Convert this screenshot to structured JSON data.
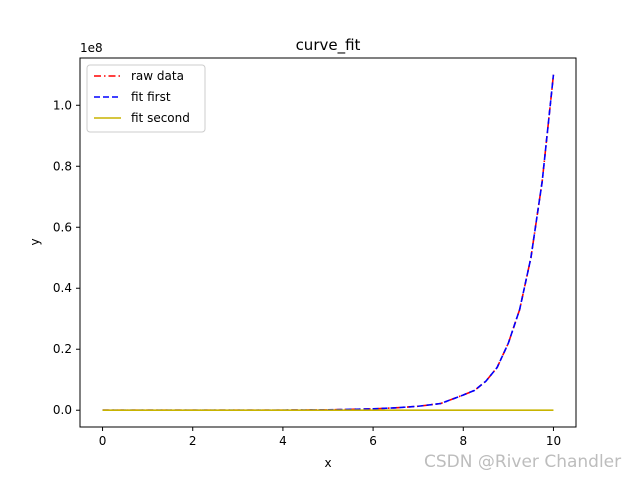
{
  "chart_data": {
    "type": "line",
    "title": "curve_fit",
    "xlabel": "x",
    "ylabel": "y",
    "offset_label": "1e8",
    "xlim": [
      -0.5,
      10.5
    ],
    "ylim": [
      -0.055,
      1.155
    ],
    "x_ticks": [
      0,
      2,
      4,
      6,
      8,
      10
    ],
    "x_tick_labels": [
      "0",
      "2",
      "4",
      "6",
      "8",
      "10"
    ],
    "y_ticks": [
      0.0,
      0.2,
      0.4,
      0.6,
      0.8,
      1.0
    ],
    "y_tick_labels": [
      "0.0",
      "0.2",
      "0.4",
      "0.6",
      "0.8",
      "1.0"
    ],
    "y_unit_multiplier": "1e8",
    "grid": false,
    "legend_position": "top-left",
    "series": [
      {
        "name": "raw data",
        "color": "#ff0000",
        "style": "dash-dot",
        "x": [
          0,
          1,
          2,
          3,
          4,
          5,
          6,
          6.5,
          7,
          7.5,
          8,
          8.25,
          8.5,
          8.75,
          9,
          9.25,
          9.5,
          9.75,
          10
        ],
        "y": [
          0.0,
          0.0,
          0.0,
          0.0,
          0.0003,
          0.0012,
          0.0045,
          0.008,
          0.013,
          0.022,
          0.05,
          0.065,
          0.095,
          0.14,
          0.22,
          0.33,
          0.5,
          0.75,
          1.1
        ]
      },
      {
        "name": "fit first",
        "color": "#0000ff",
        "style": "dashed",
        "x": [
          0,
          1,
          2,
          3,
          4,
          5,
          6,
          6.5,
          7,
          7.5,
          8,
          8.25,
          8.5,
          8.75,
          9,
          9.25,
          9.5,
          9.75,
          10
        ],
        "y": [
          0.0,
          0.0,
          0.0,
          0.0,
          0.0003,
          0.0012,
          0.0045,
          0.008,
          0.013,
          0.022,
          0.05,
          0.065,
          0.095,
          0.14,
          0.22,
          0.33,
          0.5,
          0.75,
          1.1
        ]
      },
      {
        "name": "fit second",
        "color": "#c8b400",
        "style": "solid",
        "x": [
          0,
          10
        ],
        "y": [
          0.0,
          0.0
        ]
      }
    ]
  },
  "watermark": "CSDN @River Chandler"
}
